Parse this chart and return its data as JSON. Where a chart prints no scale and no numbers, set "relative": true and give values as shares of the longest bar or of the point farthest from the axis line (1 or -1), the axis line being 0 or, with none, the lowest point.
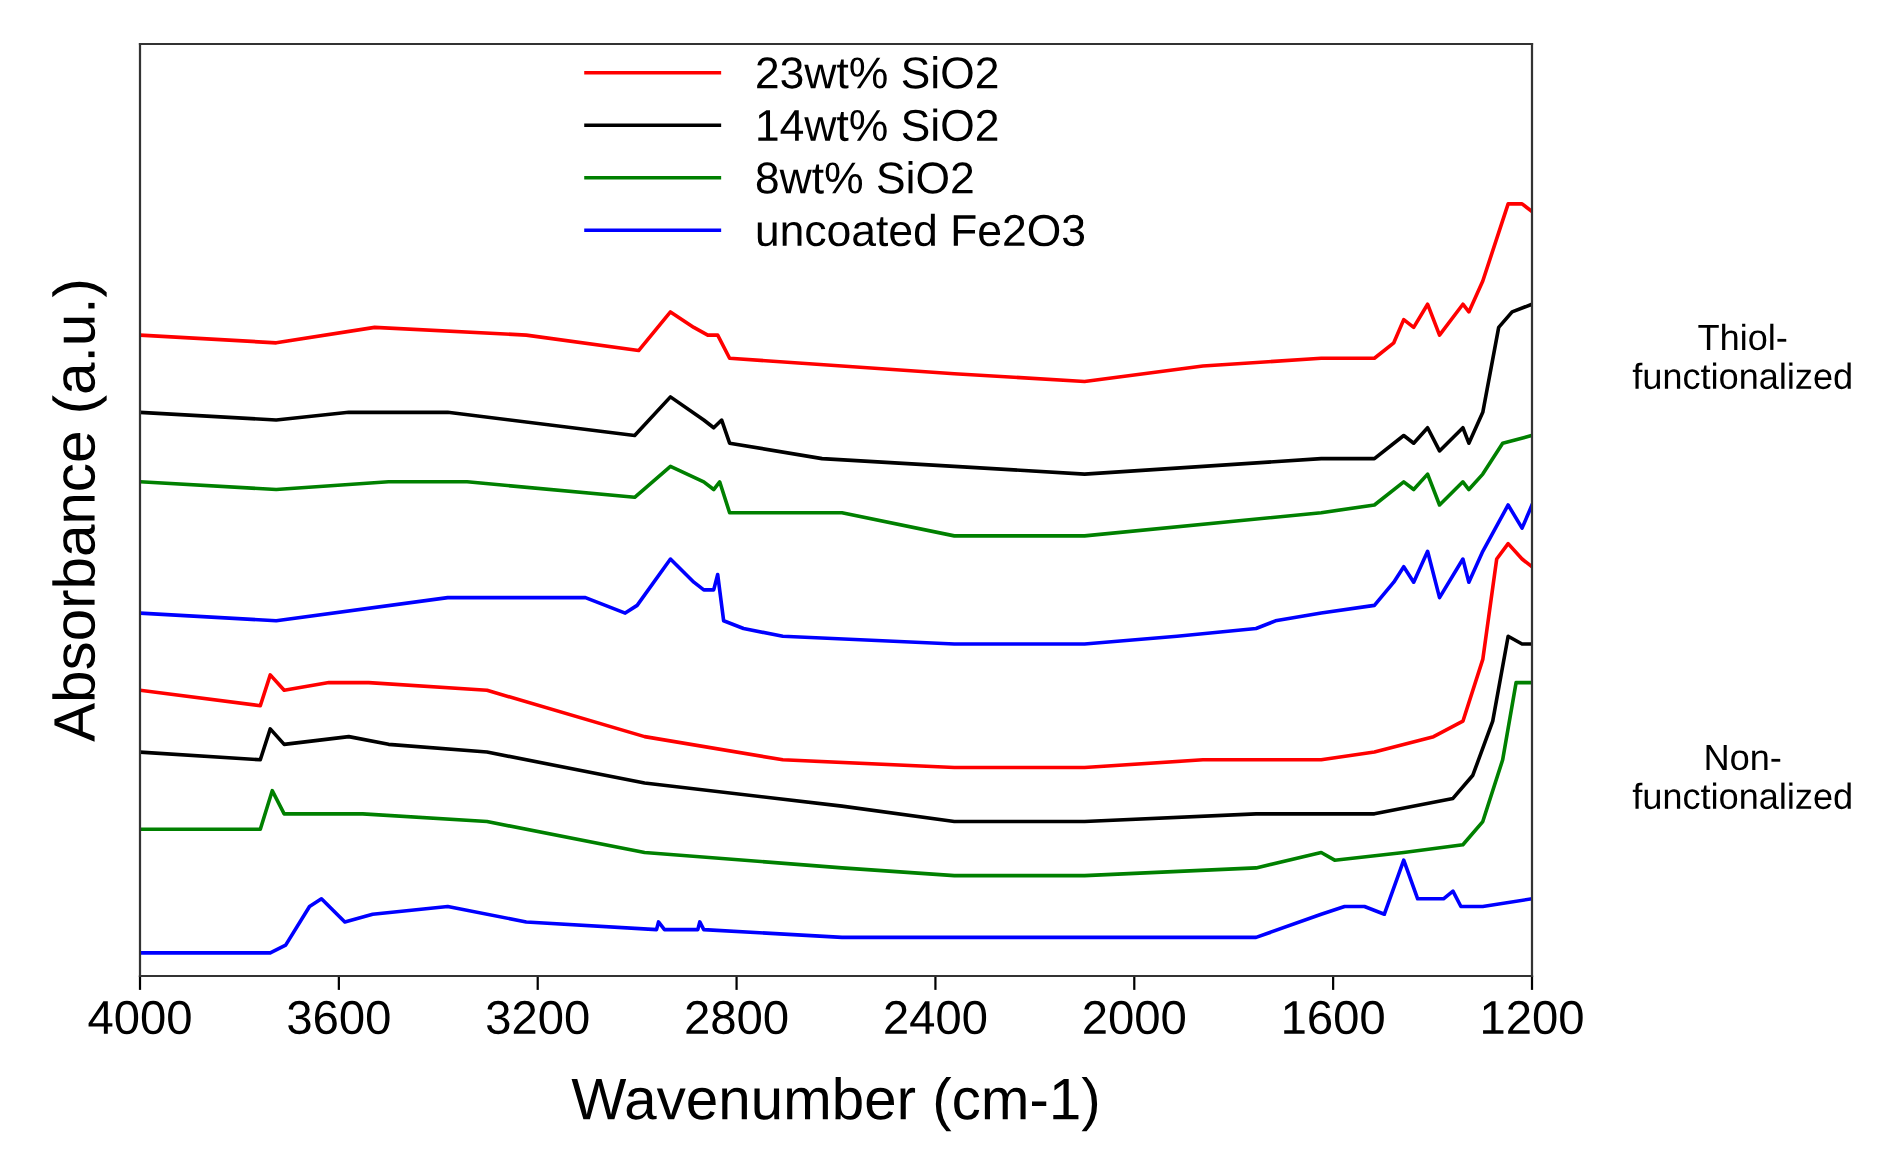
{
  "chart_data": {
    "type": "line",
    "relative": true,
    "xlabel": "Wavenumber (cm-1)",
    "ylabel": "Absorbance (a.u.)",
    "xlim": [
      4000,
      1200
    ],
    "xticks": [
      4000,
      3600,
      3200,
      2800,
      2400,
      2000,
      1600,
      1200
    ],
    "legend": "top",
    "grid": false,
    "marker": "none",
    "line_style": "solid",
    "annotations": [
      "Thiol-\nfunctionalized",
      "Non-\nfunctionalized"
    ],
    "series": [
      {
        "name": "23wt% SiO2",
        "color": "#ff0000",
        "x": [
          4000,
          3726,
          3528,
          3223,
          2997,
          2933,
          2886,
          2858,
          2838,
          2814,
          2588,
          2362,
          2100,
          1862,
          1624,
          1517,
          1478,
          1458,
          1438,
          1410,
          1386,
          1339,
          1327,
          1299,
          1248,
          1220,
          1200
        ],
        "values": [
          0.83,
          0.82,
          0.84,
          0.83,
          0.81,
          0.86,
          0.84,
          0.83,
          0.83,
          0.8,
          0.79,
          0.78,
          0.77,
          0.79,
          0.8,
          0.8,
          0.82,
          0.85,
          0.84,
          0.87,
          0.83,
          0.87,
          0.86,
          0.9,
          1.0,
          1.0,
          0.99
        ]
      },
      {
        "name": "14wt% SiO2",
        "color": "#000000",
        "x": [
          4000,
          3726,
          3580,
          3381,
          3005,
          2933,
          2866,
          2846,
          2830,
          2814,
          2628,
          2362,
          2100,
          1624,
          1517,
          1458,
          1438,
          1410,
          1386,
          1339,
          1327,
          1299,
          1267,
          1240,
          1200
        ],
        "values": [
          0.73,
          0.72,
          0.73,
          0.73,
          0.7,
          0.75,
          0.72,
          0.71,
          0.72,
          0.69,
          0.67,
          0.66,
          0.65,
          0.67,
          0.67,
          0.7,
          0.69,
          0.71,
          0.68,
          0.71,
          0.69,
          0.73,
          0.84,
          0.86,
          0.87
        ]
      },
      {
        "name": "8wt% SiO2",
        "color": "#008000",
        "x": [
          4000,
          3726,
          3500,
          3342,
          3005,
          2933,
          2866,
          2846,
          2834,
          2814,
          2588,
          2362,
          2100,
          1624,
          1517,
          1458,
          1438,
          1410,
          1386,
          1339,
          1327,
          1299,
          1259,
          1200
        ],
        "values": [
          0.64,
          0.63,
          0.64,
          0.64,
          0.62,
          0.66,
          0.64,
          0.63,
          0.64,
          0.6,
          0.6,
          0.57,
          0.57,
          0.6,
          0.61,
          0.64,
          0.63,
          0.65,
          0.61,
          0.64,
          0.63,
          0.65,
          0.69,
          0.7
        ]
      },
      {
        "name": "uncoated Fe2O3",
        "color": "#0000ff",
        "x": [
          4000,
          3726,
          3381,
          3104,
          3024,
          3000,
          2933,
          2886,
          2866,
          2846,
          2838,
          2826,
          2786,
          2707,
          2362,
          2100,
          1914,
          1755,
          1716,
          1624,
          1517,
          1478,
          1458,
          1438,
          1410,
          1386,
          1339,
          1327,
          1299,
          1248,
          1220,
          1200
        ],
        "values": [
          0.47,
          0.46,
          0.49,
          0.49,
          0.47,
          0.48,
          0.54,
          0.51,
          0.5,
          0.5,
          0.52,
          0.46,
          0.45,
          0.44,
          0.43,
          0.43,
          0.44,
          0.45,
          0.46,
          0.47,
          0.48,
          0.51,
          0.53,
          0.51,
          0.55,
          0.49,
          0.54,
          0.51,
          0.55,
          0.61,
          0.58,
          0.61
        ]
      },
      {
        "color": "#ff0000",
        "x": [
          4000,
          3758,
          3738,
          3710,
          3620,
          3540,
          3302,
          2985,
          2707,
          2362,
          2100,
          1862,
          1624,
          1517,
          1398,
          1339,
          1299,
          1271,
          1248,
          1220,
          1200
        ],
        "values": [
          0.37,
          0.35,
          0.39,
          0.37,
          0.38,
          0.38,
          0.37,
          0.31,
          0.28,
          0.27,
          0.27,
          0.28,
          0.28,
          0.29,
          0.31,
          0.33,
          0.41,
          0.54,
          0.56,
          0.54,
          0.53
        ]
      },
      {
        "color": "#000000",
        "x": [
          4000,
          3758,
          3738,
          3710,
          3580,
          3500,
          3302,
          2985,
          2588,
          2362,
          2100,
          1755,
          1624,
          1517,
          1359,
          1319,
          1279,
          1248,
          1220,
          1200
        ],
        "values": [
          0.29,
          0.28,
          0.32,
          0.3,
          0.31,
          0.3,
          0.29,
          0.25,
          0.22,
          0.2,
          0.2,
          0.21,
          0.21,
          0.21,
          0.23,
          0.26,
          0.33,
          0.44,
          0.43,
          0.43
        ]
      },
      {
        "color": "#008000",
        "x": [
          4000,
          3758,
          3734,
          3710,
          3671,
          3552,
          3302,
          2985,
          2588,
          2362,
          2100,
          1755,
          1624,
          1597,
          1458,
          1339,
          1299,
          1259,
          1232,
          1200
        ],
        "values": [
          0.19,
          0.19,
          0.24,
          0.21,
          0.21,
          0.21,
          0.2,
          0.16,
          0.14,
          0.13,
          0.13,
          0.14,
          0.16,
          0.15,
          0.16,
          0.17,
          0.2,
          0.28,
          0.38,
          0.38
        ]
      },
      {
        "color": "#0000ff",
        "x": [
          4000,
          3738,
          3707,
          3659,
          3635,
          3588,
          3532,
          3381,
          3223,
          2961,
          2957,
          2945,
          2878,
          2874,
          2866,
          2588,
          2362,
          2100,
          1755,
          1624,
          1577,
          1557,
          1537,
          1497,
          1458,
          1430,
          1378,
          1359,
          1343,
          1299,
          1200
        ],
        "values": [
          0.03,
          0.03,
          0.04,
          0.09,
          0.1,
          0.07,
          0.08,
          0.09,
          0.07,
          0.06,
          0.07,
          0.06,
          0.06,
          0.07,
          0.06,
          0.05,
          0.05,
          0.05,
          0.05,
          0.08,
          0.09,
          0.09,
          0.09,
          0.08,
          0.15,
          0.1,
          0.1,
          0.11,
          0.09,
          0.09,
          0.1
        ]
      }
    ]
  }
}
